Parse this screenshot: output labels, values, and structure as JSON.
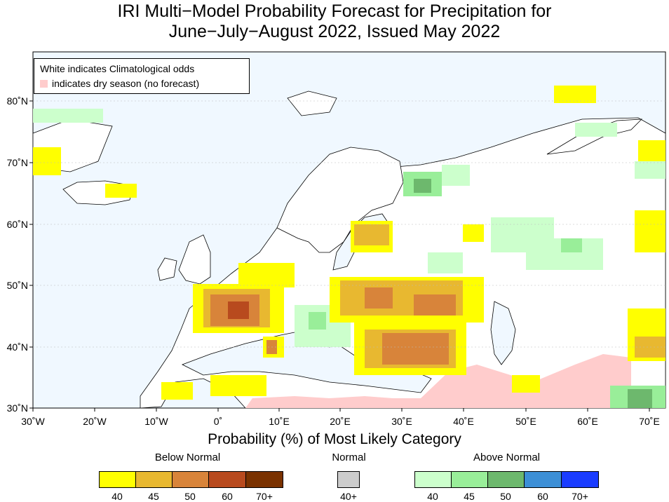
{
  "title": {
    "line1": "IRI Multi−Model Probability Forecast for Precipitation for",
    "line2": "June−July−August 2022, Issued May 2022"
  },
  "legend_box": {
    "line1": "White indicates Climatological odds",
    "line2": "indicates dry season (no forecast)"
  },
  "axes": {
    "lat_labels": [
      "80˚N",
      "70˚N",
      "60˚N",
      "50˚N",
      "40˚N",
      "30˚N"
    ],
    "lon_labels": [
      "30˚W",
      "20˚W",
      "10˚W",
      "0˚",
      "10˚E",
      "20˚E",
      "30˚E",
      "40˚E",
      "50˚E",
      "60˚E",
      "70˚E"
    ]
  },
  "colorbar": {
    "title": "Probability (%) of Most Likely Category",
    "below_normal": {
      "label": "Below Normal",
      "ticks": [
        "40",
        "45",
        "50",
        "60",
        "70+"
      ],
      "colors": [
        "#ffff00",
        "#e8b830",
        "#d8843a",
        "#b84a1e",
        "#7a3200"
      ]
    },
    "normal": {
      "label": "Normal",
      "ticks": [
        "40+"
      ],
      "colors": [
        "#cccccc"
      ]
    },
    "above_normal": {
      "label": "Above Normal",
      "ticks": [
        "40",
        "45",
        "50",
        "60",
        "70+"
      ],
      "colors": [
        "#ccffcc",
        "#99ee99",
        "#6db86d",
        "#3c8fd6",
        "#1a3cff"
      ]
    }
  },
  "map_colors": {
    "ocean": "#f0f8ff",
    "land": "#ffffff",
    "dry": "#ffcccc"
  }
}
